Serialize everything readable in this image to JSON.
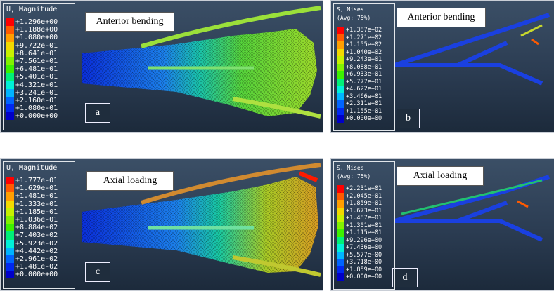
{
  "panels": [
    {
      "id": "a",
      "title": "Anterior bending",
      "letter": "a",
      "legend_title": [
        "U, Magnitude"
      ],
      "legend_values": [
        "+1.296e+00",
        "+1.188e+00",
        "+1.080e+00",
        "+9.722e-01",
        "+8.641e-01",
        "+7.561e-01",
        "+6.481e-01",
        "+5.401e-01",
        "+4.321e-01",
        "+3.241e-01",
        "+2.160e-01",
        "+1.080e-01",
        "+0.000e+00"
      ]
    },
    {
      "id": "b",
      "title": "Anterior bending",
      "letter": "b",
      "legend_title": [
        "S, Mises",
        "(Avg: 75%)"
      ],
      "legend_values": [
        "+1.387e+02",
        "+1.271e+02",
        "+1.155e+02",
        "+1.040e+02",
        "+9.243e+01",
        "+8.088e+01",
        "+6.933e+01",
        "+5.777e+01",
        "+4.622e+01",
        "+3.466e+01",
        "+2.311e+01",
        "+1.155e+01",
        "+0.000e+00"
      ]
    },
    {
      "id": "c",
      "title": "Axial loading",
      "letter": "c",
      "legend_title": [
        "U, Magnitude"
      ],
      "legend_values": [
        "+1.777e-01",
        "+1.629e-01",
        "+1.481e-01",
        "+1.333e-01",
        "+1.185e-01",
        "+1.036e-01",
        "+8.884e-02",
        "+7.403e-02",
        "+5.923e-02",
        "+4.442e-02",
        "+2.961e-02",
        "+1.481e-02",
        "+0.000e+00"
      ]
    },
    {
      "id": "d",
      "title": "Axial loading",
      "letter": "d",
      "legend_title": [
        "S, Mises",
        "(Avg: 75%)"
      ],
      "legend_values": [
        "+2.231e+01",
        "+2.045e+01",
        "+1.859e+01",
        "+1.673e+01",
        "+1.487e+01",
        "+1.301e+01",
        "+1.115e+01",
        "+9.296e+00",
        "+7.436e+00",
        "+5.577e+00",
        "+3.718e+00",
        "+1.859e+00",
        "+0.000e+00"
      ]
    }
  ],
  "colormap": [
    "#ff0000",
    "#ff5a00",
    "#ff9e00",
    "#f2d800",
    "#c6f000",
    "#82f000",
    "#3cf000",
    "#00f078",
    "#00f0d8",
    "#00b4ff",
    "#0064ff",
    "#0028f0",
    "#0000c8"
  ]
}
